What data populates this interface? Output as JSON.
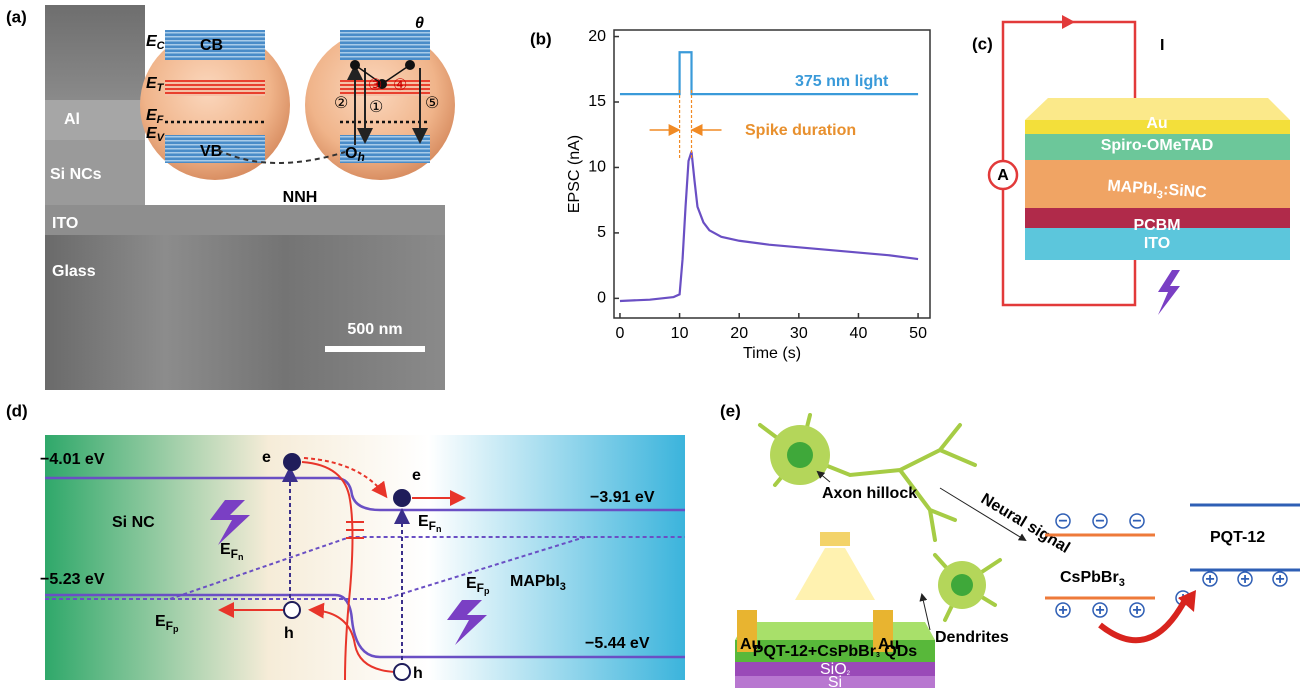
{
  "chart_data": {
    "type": "line",
    "xlabel": "Time (s)",
    "ylabel": "EPSC (nA)",
    "xlim": [
      -1,
      52
    ],
    "ylim": [
      -1.5,
      20.5
    ],
    "xticks": [
      0,
      10,
      20,
      30,
      40,
      50
    ],
    "yticks": [
      0,
      5,
      10,
      15,
      20
    ],
    "series": [
      {
        "name": "375 nm light",
        "color": "#3a9ad9",
        "x": [
          0,
          10,
          10,
          12,
          12,
          50
        ],
        "values": [
          15.6,
          15.6,
          18.8,
          18.8,
          15.6,
          15.6
        ]
      },
      {
        "color": "#6a4fc4",
        "x": [
          0,
          5,
          9,
          10,
          10.5,
          11,
          11.5,
          12,
          12.5,
          13,
          14,
          15,
          17,
          20,
          25,
          30,
          35,
          40,
          45,
          50
        ],
        "values": [
          -0.2,
          -0.1,
          0.1,
          0.3,
          3,
          7,
          10.5,
          11.2,
          9,
          7,
          5.8,
          5.2,
          4.7,
          4.4,
          4.1,
          3.9,
          3.7,
          3.5,
          3.3,
          3.0
        ]
      }
    ],
    "annotations": [
      "Spike duration"
    ]
  },
  "panels": {
    "a": {
      "label": "(a)",
      "layers": [
        "Al",
        "Si NCs",
        "ITO",
        "Glass"
      ],
      "scale_bar": "500 nm",
      "inset": {
        "cb": "CB",
        "vb": "VB",
        "levels": [
          {
            "main": "E",
            "sub": "C"
          },
          {
            "main": "E",
            "sub": "T"
          },
          {
            "main": "E",
            "sub": "F"
          },
          {
            "main": "E",
            "sub": "V"
          }
        ],
        "caption": "NNH",
        "theta": "θ",
        "hole": {
          "main": "O",
          "sub": "h"
        },
        "steps": [
          "①",
          "②",
          "③",
          "④",
          "⑤"
        ]
      }
    },
    "b": {
      "label": "(b)"
    },
    "c": {
      "label": "(c)",
      "current": "I",
      "meter": "A",
      "layers": [
        "Au",
        "Spiro-OMeTAD",
        {
          "main": "MAPbI",
          "sub": "3",
          "rest": ":SiNC"
        },
        "PCBM",
        "ITO"
      ]
    },
    "d": {
      "label": "(d)",
      "energies": [
        "−4.01 eV",
        "−5.23 eV",
        "−3.91 eV",
        "−5.44 eV"
      ],
      "left": "Si NC",
      "right": {
        "main": "MAPbI",
        "sub": "3"
      },
      "electron": "e",
      "hole": "h",
      "efn": {
        "main": "E",
        "sub": "F",
        "subsub": "n"
      },
      "efp": {
        "main": "E",
        "sub": "F",
        "subsub": "p"
      }
    },
    "e": {
      "label": "(e)",
      "neuron": [
        "Axon hillock",
        "Neural signal",
        "Dendrites"
      ],
      "device": {
        "electrode": "Au",
        "film": {
          "main": "PQT-12+CsPbBr",
          "sub": "3",
          "rest": " QDs"
        },
        "oxide": {
          "main": "SiO",
          "sub": "2"
        },
        "substrate": "Si"
      },
      "bands": {
        "donor": "PQT-12",
        "acceptor": {
          "main": "CsPbBr",
          "sub": "3"
        },
        "minus": "−",
        "plus": "+"
      }
    }
  }
}
